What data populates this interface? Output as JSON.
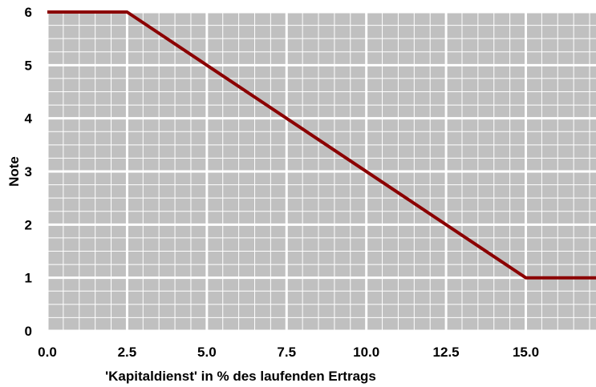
{
  "chart_data": {
    "type": "line",
    "xlabel": "'Kapitaldienst' in % des laufenden Ertrags",
    "ylabel": "Note",
    "xlim": [
      0,
      17.2
    ],
    "ylim": [
      0,
      6
    ],
    "x_ticks": [
      {
        "value": 0,
        "label": "0.0"
      },
      {
        "value": 2.5,
        "label": "2.5"
      },
      {
        "value": 5,
        "label": "5.0"
      },
      {
        "value": 7.5,
        "label": "7.5"
      },
      {
        "value": 10,
        "label": "10.0"
      },
      {
        "value": 12.5,
        "label": "12.5"
      },
      {
        "value": 15,
        "label": "15.0"
      }
    ],
    "y_ticks": [
      {
        "value": 0,
        "label": "0"
      },
      {
        "value": 1,
        "label": "1"
      },
      {
        "value": 2,
        "label": "2"
      },
      {
        "value": 3,
        "label": "3"
      },
      {
        "value": 4,
        "label": "4"
      },
      {
        "value": 5,
        "label": "5"
      },
      {
        "value": 6,
        "label": "6"
      }
    ],
    "grid": true,
    "x_minor_step": 0.5,
    "y_minor_step": 0.25,
    "background_color": "#c0c0c0",
    "grid_color": "#ffffff",
    "series": [
      {
        "color": "#8b0000",
        "points": [
          [
            0,
            6
          ],
          [
            2.5,
            6
          ],
          [
            15,
            1
          ],
          [
            17.2,
            1
          ]
        ]
      }
    ]
  }
}
